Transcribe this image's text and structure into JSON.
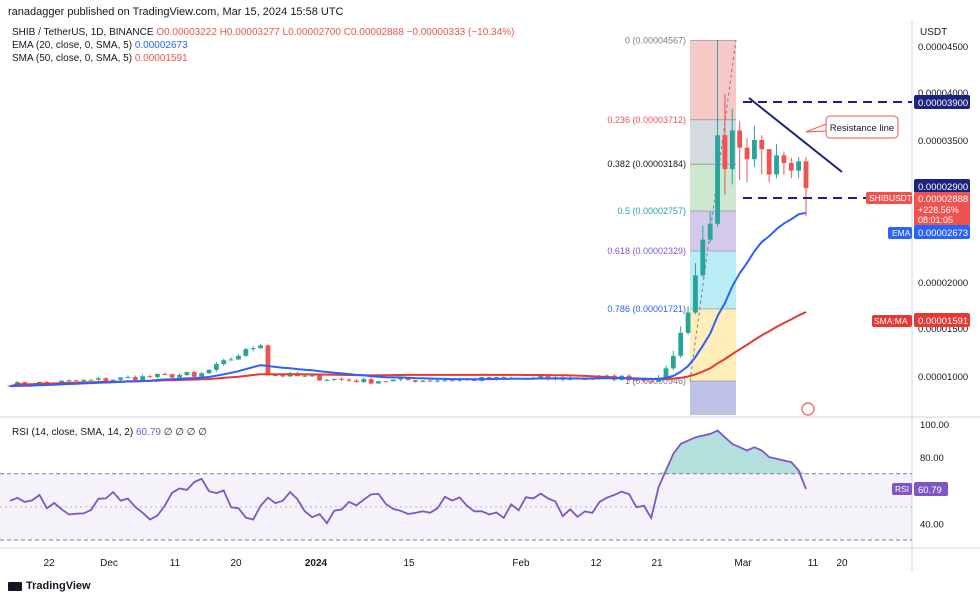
{
  "header": {
    "published": "ranadagger published on TradingView.com, Mar 15, 2024 15:58 UTC",
    "symbol": "SHIB / TetherUS, 1D, BINANCE",
    "ohlc": "O0.00003222 H0.00003277 L0.00002700 C0.00002888 −0.00000333 (−10.34%)",
    "ema_label": "EMA (20, close, 0, SMA, 5)",
    "ema_value": "0.00002673",
    "sma_label": "SMA (50, close, 0, SMA, 5)",
    "sma_value": "0.00001591",
    "rsi_label": "RSI (14, close, SMA, 14, 2)",
    "rsi_value": "60.79",
    "rsi_extra": "∅ ∅ ∅ ∅",
    "currency": "USDT"
  },
  "footer": {
    "brand": "TradingView"
  },
  "colors": {
    "up": "#26a69a",
    "down": "#ef5350",
    "ema": "#2962ff",
    "sma": "#e53935",
    "rsi": "#7e57c2",
    "trend": "#1a237e"
  },
  "chart_data": {
    "type": "candlestick",
    "price_axis_ticks": [
      "0.00004500",
      "0.00004000",
      "0.00003500",
      "0.00002000",
      "0.00001500",
      "0.00001000"
    ],
    "time_axis_ticks": [
      "22",
      "Dec",
      "11",
      "20",
      "2024",
      "15",
      "Feb",
      "12",
      "21",
      "Mar",
      "11",
      "20"
    ],
    "fib_levels": [
      {
        "label": "0 (0.00004567)",
        "value": 4.567e-05
      },
      {
        "label": "0.236 (0.00003712)",
        "value": 3.712e-05
      },
      {
        "label": "0.382 (0.00003184)",
        "value": 3.184e-05
      },
      {
        "label": "0.5 (0.00002757)",
        "value": 2.757e-05
      },
      {
        "label": "0.618 (0.00002329)",
        "value": 2.329e-05
      },
      {
        "label": "0.786 (0.00001721)",
        "value": 1.721e-05
      },
      {
        "label": "1 (0.00000946)",
        "value": 9.46e-06
      }
    ],
    "horizontal_lines": [
      {
        "label": "0.00003900",
        "value": 3.9e-05
      },
      {
        "label": "0.00002900",
        "value": 2.9e-05
      }
    ],
    "annotation": "Resistance line",
    "price_badges": [
      {
        "label": "SHIBUSDT",
        "value": "0.00002888",
        "sub": "+228.56%",
        "time": "08:01:05"
      },
      {
        "label": "EMA",
        "value": "0.00002673"
      },
      {
        "label": "SMA:MA",
        "value": "0.00001591"
      }
    ],
    "rsi_axis_ticks": [
      "100.00",
      "80.00",
      "40.00"
    ],
    "rsi_badge": {
      "label": "RSI",
      "value": "60.79"
    },
    "rsi_band": [
      30,
      70
    ],
    "series": [
      {
        "name": "SHIB/USDT",
        "kind": "candles",
        "note": "daily candles ~100 days, rally late Feb to Mar peak near 0.0000457"
      },
      {
        "name": "EMA (20)",
        "last": 2.673e-05
      },
      {
        "name": "SMA (50)",
        "last": 1.591e-05
      },
      {
        "name": "RSI (14)",
        "last": 60.79
      }
    ]
  }
}
